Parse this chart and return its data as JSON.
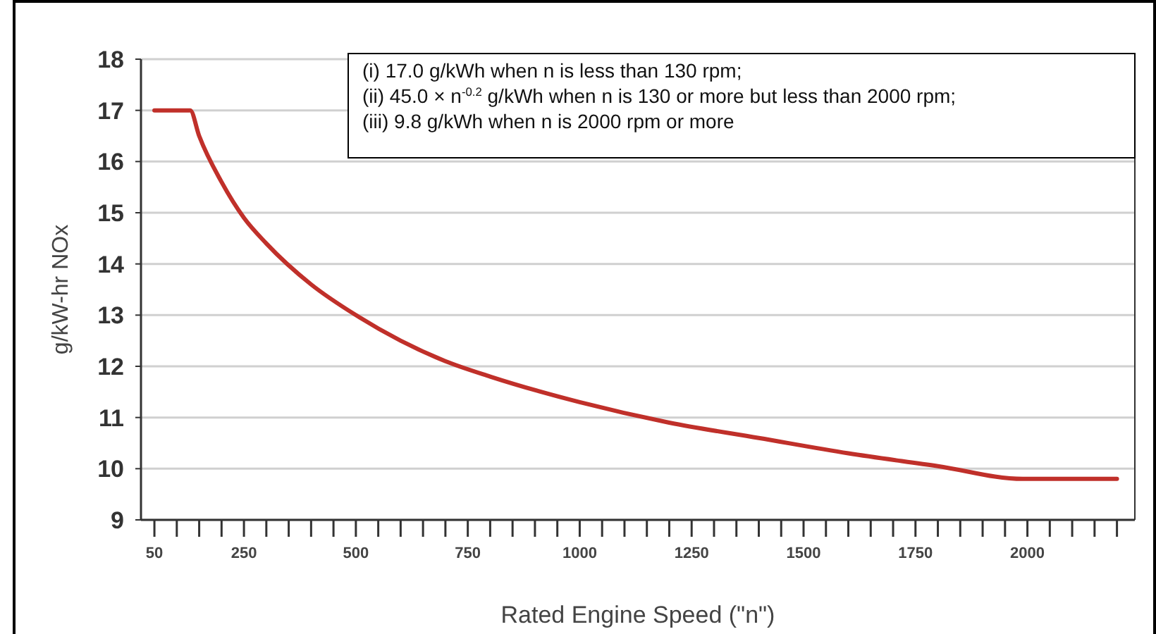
{
  "chart_data": {
    "type": "line",
    "xlabel": "Rated Engine Speed (\"n\")",
    "ylabel": "g/kW-hr NOx",
    "annotations": [
      "(i) 17.0 g/kWh when n is less than 130 rpm;",
      "(ii) 45.0 × n$^{-0.2}$ g/kWh when n is 130 or more but less than 2000 rpm;",
      "(iii) 9.8 g/kWh when n is 2000 rpm or more"
    ],
    "x": [
      50,
      130,
      150,
      200,
      250,
      300,
      400,
      500,
      600,
      700,
      800,
      1000,
      1200,
      1400,
      1600,
      1800,
      1990,
      2000,
      2200
    ],
    "series": [
      {
        "color": "#c0302a",
        "values": [
          17,
          17,
          16.5,
          15.6,
          14.9,
          14.4,
          13.6,
          13,
          12.5,
          12.1,
          11.8,
          11.3,
          10.9,
          10.6,
          10.3,
          10.05,
          9.8,
          9.8,
          9.8
        ]
      }
    ],
    "xlim": [
      20,
      2240
    ],
    "xticks": [
      50,
      {
        "value": 100,
        "label": null
      },
      {
        "value": 150,
        "label": null
      },
      {
        "value": 200,
        "label": null
      },
      250,
      {
        "value": 300,
        "label": null
      },
      {
        "value": 350,
        "label": null
      },
      {
        "value": 400,
        "label": null
      },
      {
        "value": 450,
        "label": null
      },
      500,
      {
        "value": 550,
        "label": null
      },
      {
        "value": 600,
        "label": null
      },
      {
        "value": 650,
        "label": null
      },
      {
        "value": 700,
        "label": null
      },
      750,
      {
        "value": 800,
        "label": null
      },
      {
        "value": 850,
        "label": null
      },
      {
        "value": 900,
        "label": null
      },
      {
        "value": 950,
        "label": null
      },
      1000,
      {
        "value": 1050,
        "label": null
      },
      {
        "value": 1100,
        "label": null
      },
      {
        "value": 1150,
        "label": null
      },
      {
        "value": 1200,
        "label": null
      },
      1250,
      {
        "value": 1300,
        "label": null
      },
      {
        "value": 1350,
        "label": null
      },
      {
        "value": 1400,
        "label": null
      },
      {
        "value": 1450,
        "label": null
      },
      1500,
      {
        "value": 1550,
        "label": null
      },
      {
        "value": 1600,
        "label": null
      },
      {
        "value": 1650,
        "label": null
      },
      {
        "value": 1700,
        "label": null
      },
      1750,
      {
        "value": 1800,
        "label": null
      },
      {
        "value": 1850,
        "label": null
      },
      {
        "value": 1900,
        "label": null
      },
      {
        "value": 1950,
        "label": null
      },
      2000,
      {
        "value": 2050,
        "label": null
      },
      {
        "value": 2100,
        "label": null
      },
      {
        "value": 2150,
        "label": null
      },
      {
        "value": 2200,
        "label": null
      }
    ],
    "ylim": [
      9,
      18
    ],
    "yticks": [
      9,
      10,
      11,
      12,
      13,
      14,
      15,
      16,
      17,
      18
    ],
    "grid": "y",
    "marker": "none",
    "line_style": "solid"
  }
}
